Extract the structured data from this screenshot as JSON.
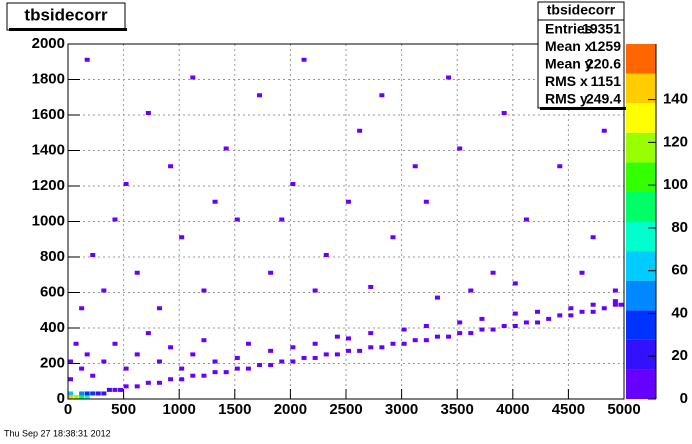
{
  "chart_data": {
    "type": "heatmap",
    "title": "tbsidecorr",
    "timestamp": "Thu Sep 27 18:38:31 2012",
    "xlim": [
      0,
      5000
    ],
    "xticks": [
      0,
      500,
      1000,
      1500,
      2000,
      2500,
      3000,
      3500,
      4000,
      4500,
      5000
    ],
    "ylim": [
      0,
      2000
    ],
    "yticks": [
      0,
      200,
      400,
      600,
      800,
      1000,
      1200,
      1400,
      1600,
      1800,
      2000
    ],
    "zlim": [
      0,
      166
    ],
    "zticks": [
      0,
      20,
      40,
      60,
      80,
      100,
      120,
      140
    ],
    "grid": true,
    "palette": [
      "#6600ff",
      "#3311ff",
      "#0033ff",
      "#0088ff",
      "#00ccff",
      "#00ffcc",
      "#00ff66",
      "#33ff00",
      "#99ff00",
      "#ffff00",
      "#ffcc00",
      "#ff6600"
    ],
    "cells": [
      [
        0,
        0,
        140
      ],
      [
        50,
        0,
        120
      ],
      [
        100,
        0,
        90
      ],
      [
        0,
        20,
        60
      ],
      [
        150,
        0,
        70
      ],
      [
        100,
        20,
        50
      ],
      [
        150,
        20,
        40
      ],
      [
        200,
        20,
        30
      ],
      [
        250,
        20,
        25
      ],
      [
        300,
        20,
        20
      ],
      [
        350,
        40,
        15
      ],
      [
        400,
        40,
        12
      ],
      [
        450,
        40,
        10
      ],
      [
        500,
        60,
        8
      ],
      [
        600,
        60,
        6
      ],
      [
        700,
        80,
        5
      ],
      [
        800,
        80,
        4
      ],
      [
        900,
        100,
        4
      ],
      [
        1000,
        100,
        4
      ],
      [
        1100,
        120,
        3
      ],
      [
        1200,
        120,
        3
      ],
      [
        1300,
        140,
        3
      ],
      [
        1400,
        140,
        3
      ],
      [
        1500,
        160,
        3
      ],
      [
        1600,
        160,
        3
      ],
      [
        1700,
        180,
        3
      ],
      [
        1800,
        180,
        3
      ],
      [
        1900,
        200,
        3
      ],
      [
        2000,
        200,
        3
      ],
      [
        2100,
        220,
        3
      ],
      [
        2200,
        220,
        3
      ],
      [
        2300,
        240,
        2
      ],
      [
        2400,
        240,
        2
      ],
      [
        2500,
        260,
        2
      ],
      [
        2600,
        260,
        2
      ],
      [
        2700,
        280,
        2
      ],
      [
        2800,
        280,
        2
      ],
      [
        2900,
        300,
        2
      ],
      [
        3000,
        300,
        2
      ],
      [
        3100,
        320,
        2
      ],
      [
        3200,
        320,
        2
      ],
      [
        3300,
        340,
        2
      ],
      [
        3400,
        340,
        2
      ],
      [
        3500,
        360,
        2
      ],
      [
        3600,
        360,
        2
      ],
      [
        3700,
        380,
        2
      ],
      [
        3800,
        380,
        2
      ],
      [
        3900,
        400,
        2
      ],
      [
        4000,
        400,
        2
      ],
      [
        4100,
        420,
        2
      ],
      [
        4200,
        420,
        2
      ],
      [
        4300,
        440,
        2
      ],
      [
        4400,
        460,
        2
      ],
      [
        4500,
        460,
        2
      ],
      [
        4600,
        480,
        2
      ],
      [
        4700,
        480,
        2
      ],
      [
        4800,
        500,
        2
      ],
      [
        4900,
        520,
        3
      ],
      [
        4950,
        520,
        3
      ],
      [
        0,
        100,
        3
      ],
      [
        0,
        200,
        2
      ],
      [
        50,
        300,
        1
      ],
      [
        100,
        160,
        2
      ],
      [
        150,
        240,
        1
      ],
      [
        200,
        120,
        2
      ],
      [
        300,
        200,
        1
      ],
      [
        400,
        300,
        1
      ],
      [
        500,
        160,
        1
      ],
      [
        600,
        240,
        1
      ],
      [
        700,
        360,
        1
      ],
      [
        800,
        200,
        1
      ],
      [
        900,
        280,
        1
      ],
      [
        1000,
        160,
        1
      ],
      [
        1100,
        240,
        1
      ],
      [
        1200,
        320,
        1
      ],
      [
        1300,
        200,
        1
      ],
      [
        1500,
        220,
        1
      ],
      [
        1600,
        300,
        1
      ],
      [
        1800,
        260,
        1
      ],
      [
        2000,
        280,
        1
      ],
      [
        2200,
        300,
        1
      ],
      [
        2400,
        340,
        1
      ],
      [
        2500,
        330,
        1
      ],
      [
        2700,
        360,
        1
      ],
      [
        3000,
        380,
        1
      ],
      [
        3200,
        400,
        1
      ],
      [
        3500,
        420,
        1
      ],
      [
        3700,
        440,
        1
      ],
      [
        4000,
        470,
        1
      ],
      [
        4200,
        480,
        1
      ],
      [
        4500,
        500,
        1
      ],
      [
        4700,
        520,
        1
      ],
      [
        4900,
        540,
        1
      ],
      [
        100,
        500,
        1
      ],
      [
        300,
        600,
        1
      ],
      [
        200,
        800,
        1
      ],
      [
        600,
        700,
        1
      ],
      [
        800,
        500,
        1
      ],
      [
        1000,
        900,
        1
      ],
      [
        1200,
        600,
        1
      ],
      [
        1500,
        1000,
        1
      ],
      [
        1800,
        700,
        1
      ],
      [
        2000,
        1200,
        1
      ],
      [
        2300,
        800,
        1
      ],
      [
        2600,
        1500,
        1
      ],
      [
        2900,
        900,
        1
      ],
      [
        3200,
        1100,
        1
      ],
      [
        3500,
        1400,
        1
      ],
      [
        3800,
        700,
        1
      ],
      [
        4100,
        1000,
        1
      ],
      [
        4400,
        1300,
        1
      ],
      [
        4700,
        900,
        1
      ],
      [
        500,
        1200,
        1
      ],
      [
        700,
        1600,
        1
      ],
      [
        1100,
        1800,
        1
      ],
      [
        1400,
        1400,
        1
      ],
      [
        1700,
        1700,
        1
      ],
      [
        2100,
        1900,
        1
      ],
      [
        2500,
        1100,
        1
      ],
      [
        2800,
        1700,
        1
      ],
      [
        3100,
        1300,
        1
      ],
      [
        3400,
        1800,
        1
      ],
      [
        3900,
        1600,
        1
      ],
      [
        4300,
        1900,
        1
      ],
      [
        4800,
        1500,
        1
      ],
      [
        150,
        1900,
        1
      ],
      [
        400,
        1000,
        1
      ],
      [
        900,
        1300,
        1
      ],
      [
        1300,
        1100,
        1
      ],
      [
        1900,
        1000,
        1
      ],
      [
        2200,
        600,
        1
      ],
      [
        2700,
        620,
        1
      ],
      [
        3300,
        560,
        1
      ],
      [
        3600,
        600,
        1
      ],
      [
        4000,
        640,
        1
      ],
      [
        4600,
        700,
        1
      ],
      [
        4900,
        600,
        1
      ]
    ],
    "stats": {
      "title": "tbsidecorr",
      "rows": [
        [
          "Entries",
          "19351"
        ],
        [
          "Mean x",
          "1259"
        ],
        [
          "Mean y",
          "220.6"
        ],
        [
          "RMS x",
          "1151"
        ],
        [
          "RMS y",
          "249.4"
        ]
      ]
    }
  }
}
